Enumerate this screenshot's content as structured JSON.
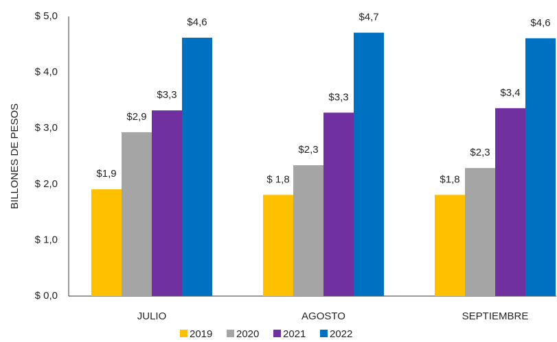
{
  "chart_data": {
    "type": "bar",
    "y_label": "BILLONES DE PESOS",
    "categories": [
      "JULIO",
      "AGOSTO",
      "SEPTIEMBRE"
    ],
    "series": [
      {
        "name": "2019",
        "color": "#ffc000",
        "values": [
          1.91,
          1.81,
          1.81
        ],
        "value_labels": [
          "$1,9",
          "$ 1,8",
          "$1,8"
        ]
      },
      {
        "name": "2020",
        "color": "#a5a5a5",
        "values": [
          2.93,
          2.34,
          2.29
        ],
        "value_labels": [
          "$2,9",
          "$2,3",
          "$2,3"
        ]
      },
      {
        "name": "2021",
        "color": "#7030a0",
        "values": [
          3.32,
          3.28,
          3.36
        ],
        "value_labels": [
          "$3,3",
          "$3,3",
          "$3,4"
        ]
      },
      {
        "name": "2022",
        "color": "#0070c0",
        "values": [
          4.62,
          4.71,
          4.61
        ],
        "value_labels": [
          "$4,6",
          "$4,7",
          "$4,6"
        ]
      }
    ],
    "ylim": [
      0,
      5
    ],
    "yticks": [
      {
        "value": 0,
        "label": "$ 0,0"
      },
      {
        "value": 1,
        "label": "$ 1,0"
      },
      {
        "value": 2,
        "label": "$ 2,0"
      },
      {
        "value": 3,
        "label": "$ 3,0"
      },
      {
        "value": 4,
        "label": "$ 4,0"
      },
      {
        "value": 5,
        "label": "$ 5,0"
      }
    ],
    "grid": false
  }
}
